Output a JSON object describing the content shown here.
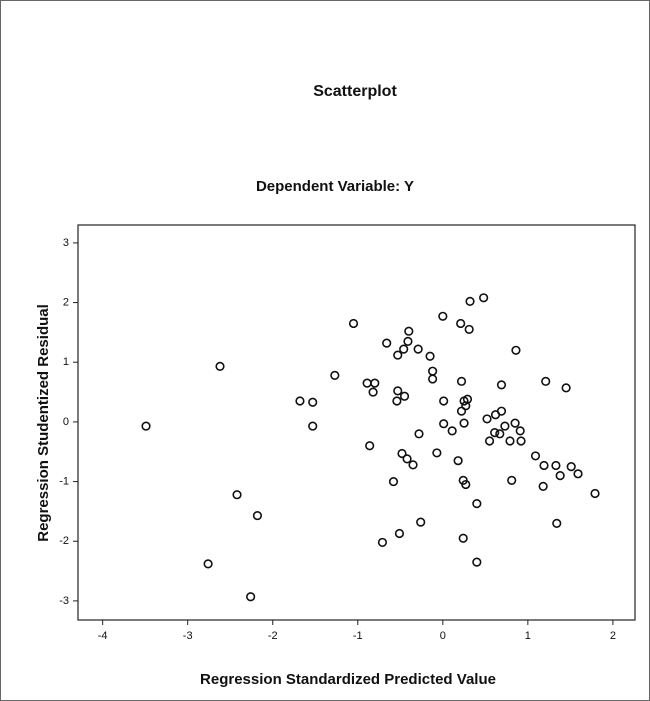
{
  "chart_data": {
    "type": "scatter",
    "title": "Scatterplot",
    "subtitle": "Dependent Variable: Y",
    "x_label": "Regression Standardized Predicted Value",
    "y_label": "Regression Studentized Residual",
    "color": "#111111",
    "xlim": [
      -4.29,
      2.26
    ],
    "ylim": [
      -3.32,
      3.3
    ],
    "xticks": [
      -4,
      -3,
      -2,
      -1,
      0,
      1,
      2
    ],
    "yticks": [
      -3,
      -2,
      -1,
      0,
      1,
      2,
      3
    ],
    "series": [
      {
        "x": [
          -3.49,
          -2.62,
          -2.76,
          -2.42,
          -2.18,
          -2.26,
          -1.68,
          -1.53,
          -1.53,
          -1.27,
          -1.05,
          -0.89,
          -0.8,
          -0.82,
          -0.86,
          -0.66,
          -0.53,
          -0.46,
          -0.4,
          -0.41,
          -0.29,
          -0.53,
          -0.45,
          -0.54,
          -0.48,
          -0.42,
          -0.35,
          -0.58,
          -0.28,
          -0.71,
          -0.51,
          -0.26,
          -0.15,
          -0.12,
          -0.12,
          -0.07,
          0,
          0.01,
          0.01,
          0.11,
          0.18,
          0.22,
          0.21,
          0.22,
          0.25,
          0.27,
          0.29,
          0.25,
          0.24,
          0.27,
          0.31,
          0.32,
          0.48,
          0.4,
          0.24,
          0.4,
          0.52,
          0.55,
          0.61,
          0.62,
          0.69,
          0.67,
          0.73,
          0.79,
          0.69,
          0.86,
          0.85,
          0.91,
          0.92,
          0.81,
          1.09,
          1.19,
          1.18,
          1.21,
          1.33,
          1.38,
          1.45,
          1.51,
          1.59,
          1.34,
          1.79
        ],
        "values": [
          -0.07,
          0.93,
          -2.38,
          -1.22,
          -1.57,
          -2.93,
          0.35,
          0.33,
          -0.07,
          0.78,
          1.65,
          0.65,
          0.65,
          0.5,
          -0.4,
          1.32,
          1.12,
          1.22,
          1.52,
          1.35,
          1.22,
          0.52,
          0.43,
          0.35,
          -0.53,
          -0.62,
          -0.72,
          -1.0,
          -0.2,
          -2.02,
          -1.87,
          -1.68,
          1.1,
          0.85,
          0.72,
          -0.52,
          1.77,
          0.35,
          -0.03,
          -0.15,
          -0.65,
          0.68,
          1.65,
          0.18,
          0.35,
          0.27,
          0.38,
          -0.02,
          -0.98,
          -1.05,
          1.55,
          2.02,
          2.08,
          -1.37,
          -1.95,
          -2.35,
          0.05,
          -0.32,
          -0.18,
          0.12,
          0.18,
          -0.2,
          -0.07,
          -0.32,
          0.62,
          1.2,
          -0.02,
          -0.15,
          -0.32,
          -0.98,
          -0.57,
          -0.73,
          -1.08,
          0.68,
          -0.73,
          -0.9,
          0.57,
          -0.75,
          -0.87,
          -1.7,
          -1.2
        ]
      }
    ]
  }
}
